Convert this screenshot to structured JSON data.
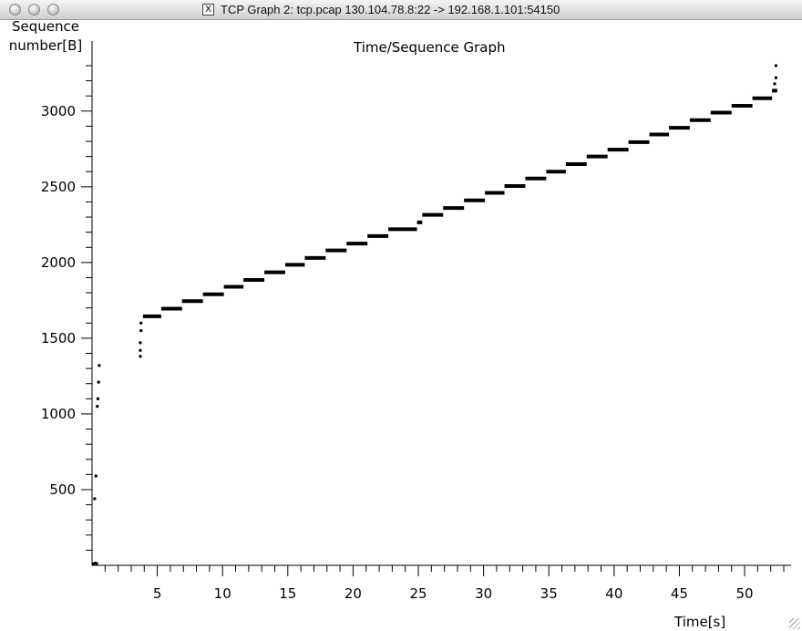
{
  "window": {
    "title": "TCP Graph 2: tcp.pcap 130.104.78.8:22 -> 192.168.1.101:54150",
    "x_glyph": "X"
  },
  "chart_data": {
    "type": "scatter",
    "title": "Time/Sequence Graph",
    "ylabel_line1": "Sequence",
    "ylabel_line2": "number[B]",
    "xlabel": "Time[s]",
    "xlim": [
      0,
      53
    ],
    "ylim": [
      0,
      3300
    ],
    "x_ticks": [
      5,
      10,
      15,
      20,
      25,
      30,
      35,
      40,
      45,
      50
    ],
    "y_ticks": [
      500,
      1000,
      1500,
      2000,
      2500,
      3000
    ],
    "grid": false,
    "legend": "none",
    "initial_points": [
      {
        "x": 0.1,
        "y": 10
      },
      {
        "x": 0.25,
        "y": 15
      },
      {
        "x": 0.35,
        "y": 12
      },
      {
        "x": 0.2,
        "y": 440
      },
      {
        "x": 0.3,
        "y": 590
      },
      {
        "x": 0.4,
        "y": 1050
      },
      {
        "x": 0.45,
        "y": 1100
      },
      {
        "x": 0.5,
        "y": 1210
      },
      {
        "x": 0.55,
        "y": 1320
      },
      {
        "x": 3.7,
        "y": 1380
      },
      {
        "x": 3.7,
        "y": 1420
      },
      {
        "x": 3.7,
        "y": 1470
      },
      {
        "x": 3.75,
        "y": 1550
      },
      {
        "x": 3.75,
        "y": 1600
      },
      {
        "x": 52.3,
        "y": 3180
      },
      {
        "x": 52.4,
        "y": 3220
      },
      {
        "x": 52.4,
        "y": 3300
      }
    ],
    "segments": [
      {
        "x0": 3.9,
        "x1": 5.3,
        "y": 1645
      },
      {
        "x0": 5.3,
        "x1": 6.9,
        "y": 1695
      },
      {
        "x0": 6.9,
        "x1": 8.5,
        "y": 1745
      },
      {
        "x0": 8.5,
        "x1": 10.1,
        "y": 1790
      },
      {
        "x0": 10.1,
        "x1": 11.6,
        "y": 1840
      },
      {
        "x0": 11.6,
        "x1": 13.2,
        "y": 1885
      },
      {
        "x0": 13.2,
        "x1": 14.8,
        "y": 1935
      },
      {
        "x0": 14.8,
        "x1": 16.3,
        "y": 1985
      },
      {
        "x0": 16.3,
        "x1": 17.9,
        "y": 2030
      },
      {
        "x0": 17.9,
        "x1": 19.5,
        "y": 2080
      },
      {
        "x0": 19.5,
        "x1": 21.1,
        "y": 2125
      },
      {
        "x0": 21.1,
        "x1": 22.7,
        "y": 2175
      },
      {
        "x0": 22.7,
        "x1": 24.9,
        "y": 2220
      },
      {
        "x0": 24.9,
        "x1": 25.3,
        "y": 2265
      },
      {
        "x0": 25.3,
        "x1": 26.9,
        "y": 2315
      },
      {
        "x0": 26.9,
        "x1": 28.5,
        "y": 2360
      },
      {
        "x0": 28.5,
        "x1": 30.1,
        "y": 2410
      },
      {
        "x0": 30.1,
        "x1": 31.6,
        "y": 2460
      },
      {
        "x0": 31.6,
        "x1": 33.2,
        "y": 2505
      },
      {
        "x0": 33.2,
        "x1": 34.8,
        "y": 2555
      },
      {
        "x0": 34.8,
        "x1": 36.3,
        "y": 2600
      },
      {
        "x0": 36.3,
        "x1": 37.9,
        "y": 2650
      },
      {
        "x0": 37.9,
        "x1": 39.5,
        "y": 2700
      },
      {
        "x0": 39.5,
        "x1": 41.1,
        "y": 2745
      },
      {
        "x0": 41.1,
        "x1": 42.7,
        "y": 2795
      },
      {
        "x0": 42.7,
        "x1": 44.2,
        "y": 2845
      },
      {
        "x0": 44.2,
        "x1": 45.8,
        "y": 2890
      },
      {
        "x0": 45.8,
        "x1": 47.4,
        "y": 2940
      },
      {
        "x0": 47.4,
        "x1": 49.0,
        "y": 2990
      },
      {
        "x0": 49.0,
        "x1": 50.6,
        "y": 3035
      },
      {
        "x0": 50.6,
        "x1": 52.1,
        "y": 3085
      },
      {
        "x0": 52.1,
        "x1": 52.5,
        "y": 3135
      }
    ]
  }
}
